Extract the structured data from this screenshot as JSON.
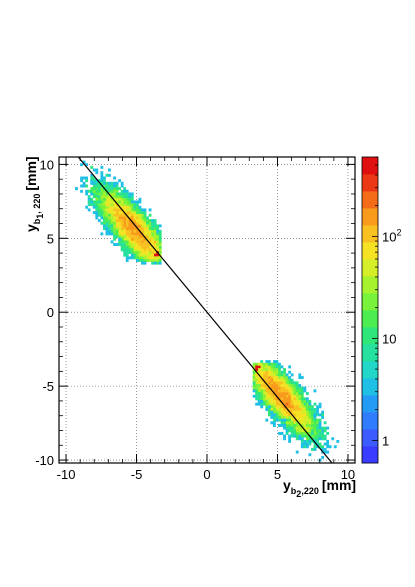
{
  "chart_data": {
    "type": "heatmap",
    "title": "",
    "xlabel": {
      "main": "y",
      "sub1": "b",
      "sub2": "2",
      "sub3": ",220",
      "unit": "[mm]"
    },
    "ylabel": {
      "main": "y",
      "sub1": "b",
      "sub2": "1",
      "sub3": ", 220",
      "unit": "[mm]"
    },
    "xlim": [
      -10.5,
      10.5
    ],
    "ylim": [
      -10.2,
      10.5
    ],
    "x_ticks": [
      -10,
      -5,
      0,
      5,
      10
    ],
    "y_ticks": [
      -10,
      -5,
      0,
      5,
      10
    ],
    "x_tick_labels": [
      "-10",
      "-5",
      "0",
      "5",
      "10"
    ],
    "y_tick_labels": [
      "-10",
      "-5",
      "0",
      "5",
      "10"
    ],
    "grid": true,
    "colorbar": {
      "scale": "log",
      "range": [
        0.6,
        600
      ],
      "labels": [
        {
          "value": 1,
          "base": "1",
          "exp": ""
        },
        {
          "value": 10,
          "base": "10",
          "exp": ""
        },
        {
          "value": 100,
          "base": "10",
          "exp": "2"
        }
      ],
      "colors": [
        "#3a3cff",
        "#3c5cff",
        "#2f7cff",
        "#249cf6",
        "#20c0e6",
        "#22d7c8",
        "#26e0a0",
        "#2ee67a",
        "#4ded52",
        "#78f23a",
        "#a6f22e",
        "#d4ef28",
        "#f6e224",
        "#f8c020",
        "#f89a1c",
        "#f46c18",
        "#ec3814",
        "#e01010"
      ]
    },
    "diagonal_line": {
      "slope": -1.15,
      "intercept": 0
    },
    "clusters": [
      {
        "name": "upper-left",
        "center": [
          -5.2,
          5.6
        ],
        "y_cut": [
          3.4,
          4.2
        ],
        "x_cut_max": -3.3,
        "peak": [
          -3.5,
          3.8
        ],
        "peak_count": 400
      },
      {
        "name": "lower-right",
        "center": [
          5.2,
          -5.6
        ],
        "y_cut": [
          -4.2,
          -3.4
        ],
        "x_cut_min": 3.3,
        "peak": [
          3.5,
          -3.7
        ],
        "peak_count": 400
      }
    ]
  }
}
